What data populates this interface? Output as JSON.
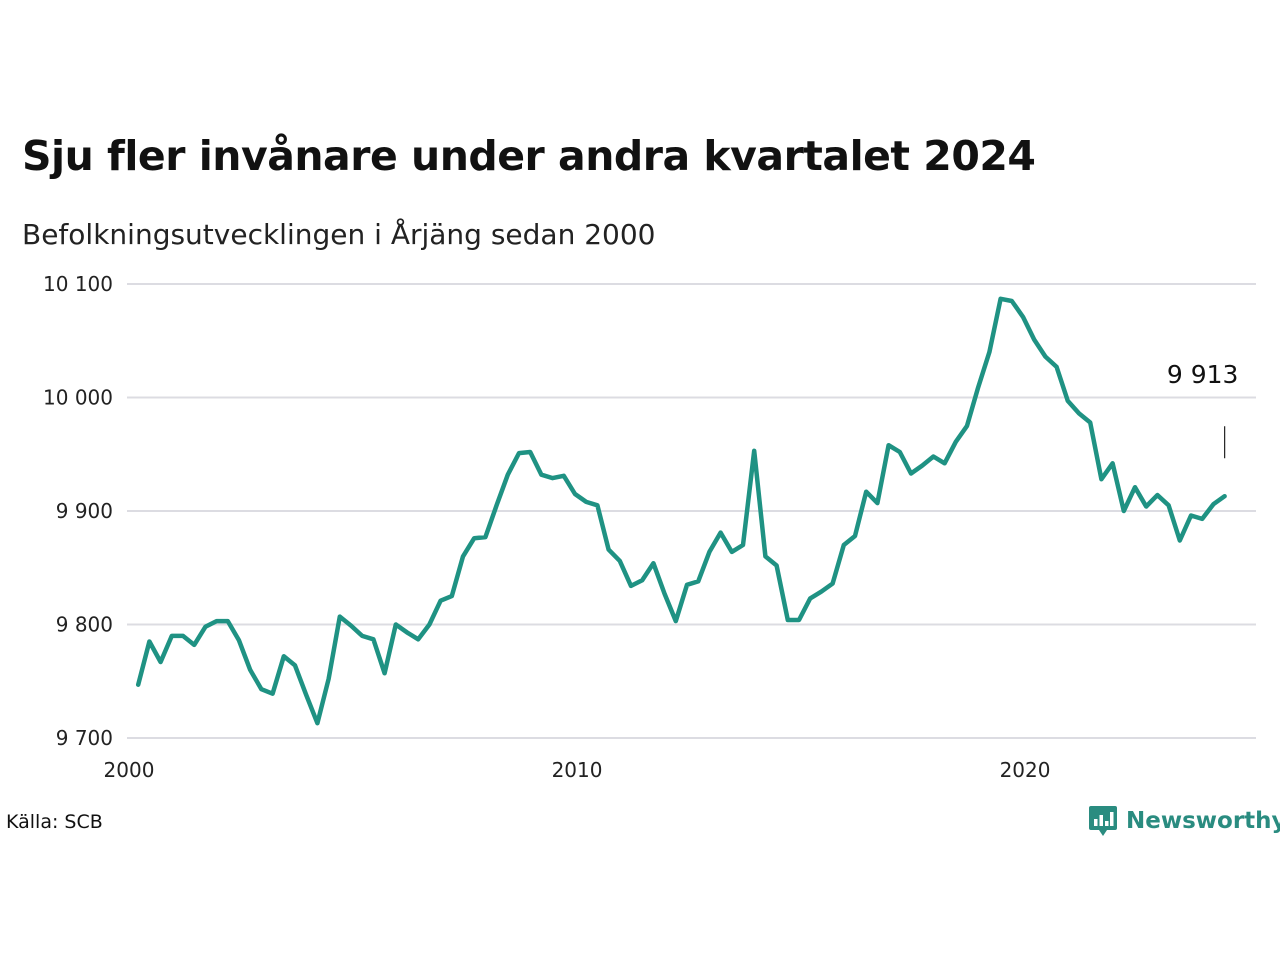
{
  "header": {
    "title": "Sju fler invånare under andra kvartalet 2024",
    "subtitle": "Befolkningsutvecklingen i Årjäng sedan 2000"
  },
  "footer": {
    "source": "Källa: SCB",
    "brand": "Newsworthy",
    "brand_icon": "bar-chart-speech-bubble-icon"
  },
  "colors": {
    "line": "#1f9283",
    "grid": "#dcdce2",
    "brand": "#2a8c80"
  },
  "chart_data": {
    "type": "line",
    "title": "Sju fler invånare under andra kvartalet 2024",
    "subtitle": "Befolkningsutvecklingen i Årjäng sedan 2000",
    "xlabel": "",
    "ylabel": "",
    "ylim": [
      9700,
      10100
    ],
    "xlim": [
      2000,
      2025.2
    ],
    "grid": true,
    "y_ticks": [
      {
        "value": 9700,
        "label": "9 700"
      },
      {
        "value": 9800,
        "label": "9 800"
      },
      {
        "value": 9900,
        "label": "9 900"
      },
      {
        "value": 10000,
        "label": "10 000"
      },
      {
        "value": 10100,
        "label": "10 100"
      }
    ],
    "x_ticks": [
      {
        "value": 2000,
        "label": "2000"
      },
      {
        "value": 2010,
        "label": "2010"
      },
      {
        "value": 2020,
        "label": "2020"
      }
    ],
    "end_label": "9 913",
    "series": [
      {
        "values": [
          [
            2000.25,
            9747
          ],
          [
            2000.5,
            9785
          ],
          [
            2000.75,
            9767
          ],
          [
            2001.0,
            9790
          ],
          [
            2001.25,
            9790
          ],
          [
            2001.5,
            9782
          ],
          [
            2001.75,
            9798
          ],
          [
            2002.0,
            9803
          ],
          [
            2002.25,
            9803
          ],
          [
            2002.5,
            9786
          ],
          [
            2002.75,
            9760
          ],
          [
            2003.0,
            9743
          ],
          [
            2003.25,
            9739
          ],
          [
            2003.5,
            9772
          ],
          [
            2003.75,
            9764
          ],
          [
            2004.0,
            9738
          ],
          [
            2004.25,
            9713
          ],
          [
            2004.5,
            9752
          ],
          [
            2004.75,
            9807
          ],
          [
            2005.0,
            9799
          ],
          [
            2005.25,
            9790
          ],
          [
            2005.5,
            9787
          ],
          [
            2005.75,
            9757
          ],
          [
            2006.0,
            9800
          ],
          [
            2006.25,
            9793
          ],
          [
            2006.5,
            9787
          ],
          [
            2006.75,
            9800
          ],
          [
            2007.0,
            9821
          ],
          [
            2007.25,
            9825
          ],
          [
            2007.5,
            9860
          ],
          [
            2007.75,
            9876
          ],
          [
            2008.0,
            9877
          ],
          [
            2008.25,
            9905
          ],
          [
            2008.5,
            9932
          ],
          [
            2008.75,
            9951
          ],
          [
            2009.0,
            9952
          ],
          [
            2009.25,
            9932
          ],
          [
            2009.5,
            9929
          ],
          [
            2009.75,
            9931
          ],
          [
            2010.0,
            9915
          ],
          [
            2010.25,
            9908
          ],
          [
            2010.5,
            9905
          ],
          [
            2010.75,
            9866
          ],
          [
            2011.0,
            9856
          ],
          [
            2011.25,
            9834
          ],
          [
            2011.5,
            9839
          ],
          [
            2011.75,
            9854
          ],
          [
            2012.0,
            9827
          ],
          [
            2012.25,
            9803
          ],
          [
            2012.5,
            9835
          ],
          [
            2012.75,
            9838
          ],
          [
            2013.0,
            9864
          ],
          [
            2013.25,
            9881
          ],
          [
            2013.5,
            9864
          ],
          [
            2013.75,
            9870
          ],
          [
            2014.0,
            9953
          ],
          [
            2014.25,
            9860
          ],
          [
            2014.5,
            9852
          ],
          [
            2014.75,
            9804
          ],
          [
            2015.0,
            9804
          ],
          [
            2015.25,
            9823
          ],
          [
            2015.5,
            9829
          ],
          [
            2015.75,
            9836
          ],
          [
            2016.0,
            9870
          ],
          [
            2016.25,
            9878
          ],
          [
            2016.5,
            9917
          ],
          [
            2016.75,
            9907
          ],
          [
            2017.0,
            9958
          ],
          [
            2017.25,
            9952
          ],
          [
            2017.5,
            9933
          ],
          [
            2017.75,
            9940
          ],
          [
            2018.0,
            9948
          ],
          [
            2018.25,
            9942
          ],
          [
            2018.5,
            9961
          ],
          [
            2018.75,
            9975
          ],
          [
            2019.0,
            10009
          ],
          [
            2019.25,
            10040
          ],
          [
            2019.5,
            10087
          ],
          [
            2019.75,
            10085
          ],
          [
            2020.0,
            10071
          ],
          [
            2020.25,
            10051
          ],
          [
            2020.5,
            10036
          ],
          [
            2020.75,
            10027
          ],
          [
            2021.0,
            9997
          ],
          [
            2021.25,
            9986
          ],
          [
            2021.5,
            9978
          ],
          [
            2021.75,
            9928
          ],
          [
            2022.0,
            9942
          ],
          [
            2022.25,
            9900
          ],
          [
            2022.5,
            9921
          ],
          [
            2022.75,
            9904
          ],
          [
            2023.0,
            9914
          ],
          [
            2023.25,
            9905
          ],
          [
            2023.5,
            9874
          ],
          [
            2023.75,
            9896
          ],
          [
            2024.0,
            9893
          ],
          [
            2024.25,
            9906
          ],
          [
            2024.5,
            9913
          ]
        ]
      }
    ]
  }
}
